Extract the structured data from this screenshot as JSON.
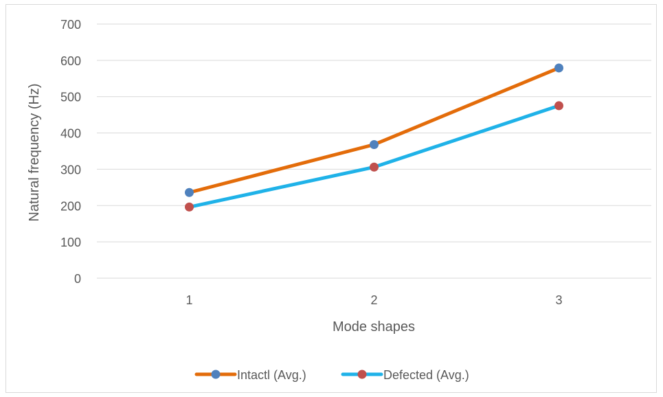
{
  "chart_data": {
    "type": "line",
    "title": "",
    "xlabel": "Mode shapes",
    "ylabel": "Natural frequency (Hz)",
    "categories": [
      "1",
      "2",
      "3"
    ],
    "ylim": [
      0,
      700
    ],
    "yticks": [
      "0",
      "100",
      "200",
      "300",
      "400",
      "500",
      "600",
      "700"
    ],
    "grid": true,
    "legend_position": "bottom",
    "series": [
      {
        "name": "Intactl (Avg.)",
        "values": [
          236,
          368,
          579
        ],
        "line_color": "#e36c0a",
        "marker_color": "#4f81bd"
      },
      {
        "name": "Defected (Avg.)",
        "values": [
          196,
          306,
          475
        ],
        "line_color": "#1fb2e8",
        "marker_color": "#c0504d"
      }
    ]
  }
}
